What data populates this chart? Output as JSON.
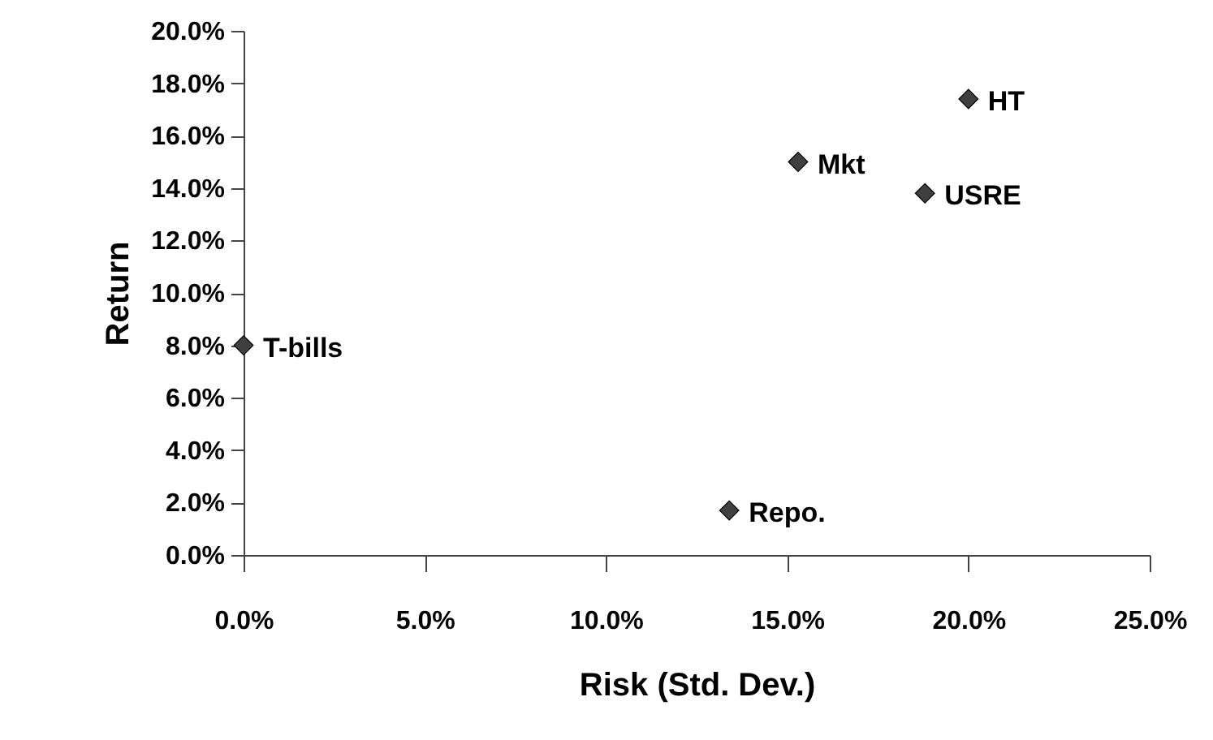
{
  "chart_data": {
    "type": "scatter",
    "xlabel": "Risk (Std. Dev.)",
    "ylabel": "Return",
    "x": [
      0.0,
      13.4,
      15.3,
      18.8,
      20.0
    ],
    "series": [
      {
        "color": "#404040",
        "values": [
          8.0,
          1.7,
          15.0,
          13.8,
          17.4
        ]
      }
    ],
    "annotations": [
      {
        "text": "T-bills",
        "x": 0.0,
        "y": 8.0
      },
      {
        "text": "Repo.",
        "x": 13.4,
        "y": 1.7
      },
      {
        "text": "Mkt",
        "x": 15.3,
        "y": 15.0
      },
      {
        "text": "USRE",
        "x": 18.8,
        "y": 13.8
      },
      {
        "text": "HT",
        "x": 20.0,
        "y": 17.4
      }
    ],
    "xlim": [
      0,
      25
    ],
    "ylim": [
      0,
      20
    ],
    "xticks": [
      {
        "value": 0,
        "label": "0.0%"
      },
      {
        "value": 5,
        "label": "5.0%"
      },
      {
        "value": 10,
        "label": "10.0%"
      },
      {
        "value": 15,
        "label": "15.0%"
      },
      {
        "value": 20,
        "label": "20.0%"
      },
      {
        "value": 25,
        "label": "25.0%"
      }
    ],
    "yticks": [
      {
        "value": 0,
        "label": "0.0%"
      },
      {
        "value": 2,
        "label": "2.0%"
      },
      {
        "value": 4,
        "label": "4.0%"
      },
      {
        "value": 6,
        "label": "6.0%"
      },
      {
        "value": 8,
        "label": "8.0%"
      },
      {
        "value": 10,
        "label": "10.0%"
      },
      {
        "value": 12,
        "label": "12.0%"
      },
      {
        "value": 14,
        "label": "14.0%"
      },
      {
        "value": 16,
        "label": "16.0%"
      },
      {
        "value": 18,
        "label": "18.0%"
      },
      {
        "value": 20,
        "label": "20.0%"
      }
    ],
    "marker": "diamond",
    "grid": false
  }
}
